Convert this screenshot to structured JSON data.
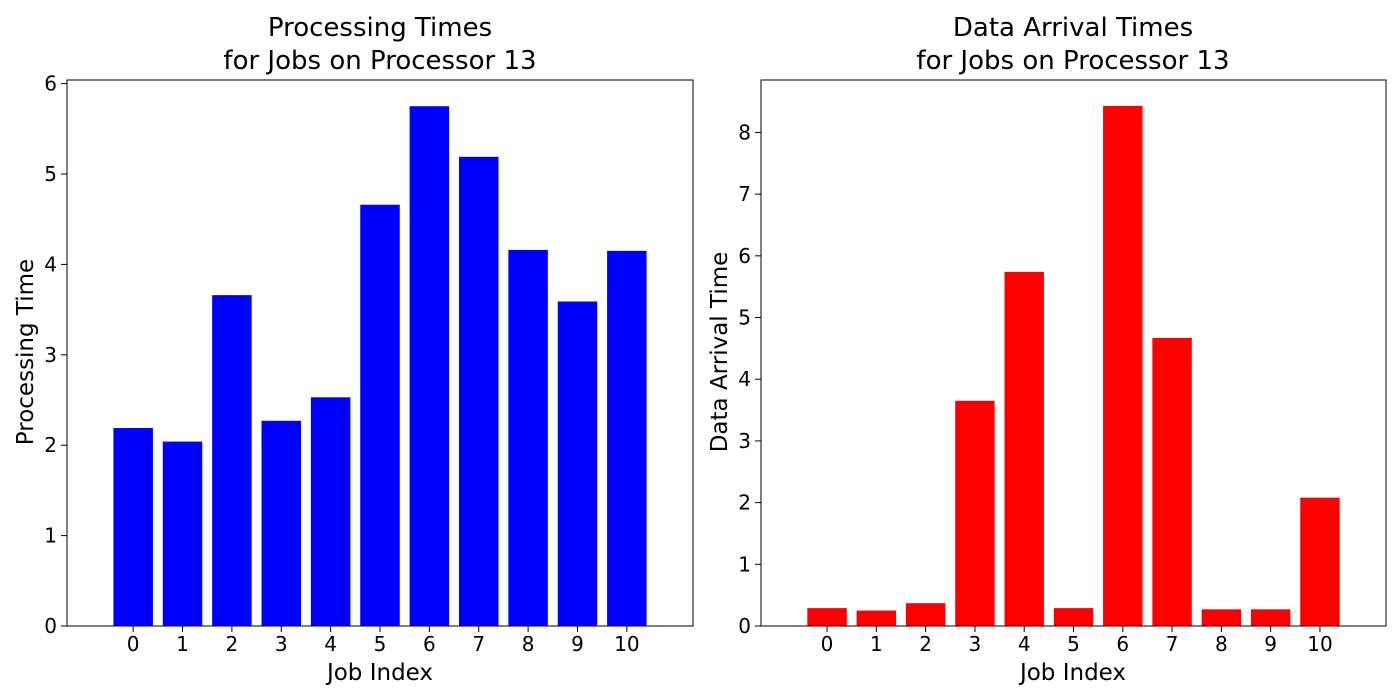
{
  "chart_data": [
    {
      "type": "bar",
      "title_lines": [
        "Processing Times",
        "for Jobs on Processor 13"
      ],
      "xlabel": "Job Index",
      "ylabel": "Processing Time",
      "categories": [
        "0",
        "1",
        "2",
        "3",
        "4",
        "5",
        "6",
        "7",
        "8",
        "9",
        "10"
      ],
      "values": [
        2.19,
        2.04,
        3.66,
        2.27,
        2.53,
        4.66,
        5.75,
        5.19,
        4.16,
        3.59,
        4.15
      ],
      "ylim": [
        0,
        6.04
      ],
      "yticks": [
        0,
        1,
        2,
        3,
        4,
        5,
        6
      ],
      "color": "#0000ff",
      "grid": false
    },
    {
      "type": "bar",
      "title_lines": [
        "Data Arrival Times",
        "for Jobs on Processor 13"
      ],
      "xlabel": "Job Index",
      "ylabel": "Data Arrival Time",
      "categories": [
        "0",
        "1",
        "2",
        "3",
        "4",
        "5",
        "6",
        "7",
        "8",
        "9",
        "10"
      ],
      "values": [
        0.29,
        0.25,
        0.37,
        3.65,
        5.74,
        0.29,
        8.43,
        4.67,
        0.27,
        0.27,
        2.08
      ],
      "ylim": [
        0,
        8.85
      ],
      "yticks": [
        0,
        1,
        2,
        3,
        4,
        5,
        6,
        7,
        8
      ],
      "color": "#ff0000",
      "grid": false
    }
  ]
}
